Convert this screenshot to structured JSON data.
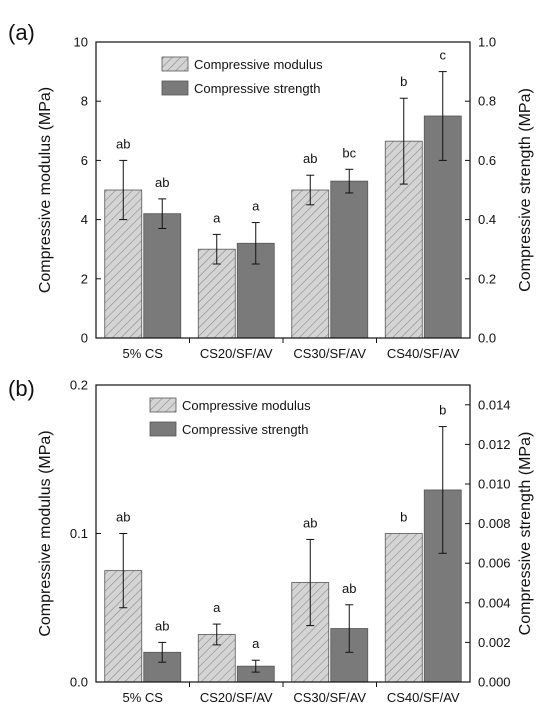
{
  "colors": {
    "modulus_fill": "#d4d4d4",
    "modulus_hatch": "#8a8a8a",
    "strength_fill": "#7a7a7a",
    "axis": "#111111"
  },
  "chart_data": [
    {
      "panel": "(a)",
      "type": "bar",
      "categories": [
        "5% CS",
        "CS20/SF/AV",
        "CS30/SF/AV",
        "CS40/SF/AV"
      ],
      "ylabel": "Compressive modulus (MPa)",
      "ylabel2": "Compressive strength (MPa)",
      "ylim": [
        0,
        10
      ],
      "yticks": [
        "0",
        "2",
        "4",
        "6",
        "8",
        "10"
      ],
      "ylim2": [
        0,
        1.0
      ],
      "yticks2": [
        "0.0",
        "0.2",
        "0.4",
        "0.6",
        "0.8",
        "1.0"
      ],
      "legend_position": "top-left",
      "series": [
        {
          "name": "Compressive modulus",
          "axis": "left",
          "pattern": "hatched",
          "values": [
            5.0,
            3.0,
            5.0,
            6.65
          ],
          "errors": [
            1.0,
            0.5,
            0.5,
            1.45
          ],
          "labels": [
            "ab",
            "a",
            "ab",
            "b"
          ]
        },
        {
          "name": "Compressive strength",
          "axis": "right",
          "pattern": "solid",
          "values": [
            0.42,
            0.32,
            0.53,
            0.75
          ],
          "errors": [
            0.05,
            0.07,
            0.04,
            0.15
          ],
          "labels": [
            "ab",
            "a",
            "bc",
            "c"
          ]
        }
      ]
    },
    {
      "panel": "(b)",
      "type": "bar",
      "categories": [
        "5% CS",
        "CS20/SF/AV",
        "CS30/SF/AV",
        "CS40/SF/AV"
      ],
      "ylabel": "Compressive modulus (MPa)",
      "ylabel2": "Compressive strength (MPa)",
      "ylim": [
        0,
        0.2
      ],
      "yticks": [
        "0.0",
        "0.1",
        "0.2"
      ],
      "ylim2": [
        0,
        0.015
      ],
      "yticks2": [
        "0.000",
        "0.002",
        "0.004",
        "0.006",
        "0.008",
        "0.010",
        "0.012",
        "0.014"
      ],
      "legend_position": "top-left",
      "series": [
        {
          "name": "Compressive modulus",
          "axis": "left",
          "pattern": "hatched",
          "values": [
            0.075,
            0.032,
            0.067,
            0.1
          ],
          "errors": [
            0.025,
            0.007,
            0.029,
            0.0
          ],
          "labels": [
            "ab",
            "a",
            "ab",
            "b"
          ]
        },
        {
          "name": "Compressive strength",
          "axis": "right",
          "pattern": "solid",
          "values": [
            0.0015,
            0.0008,
            0.0027,
            0.0097
          ],
          "errors": [
            0.0005,
            0.0003,
            0.0012,
            0.0032
          ],
          "labels": [
            "ab",
            "a",
            "ab",
            "b"
          ]
        }
      ]
    }
  ]
}
